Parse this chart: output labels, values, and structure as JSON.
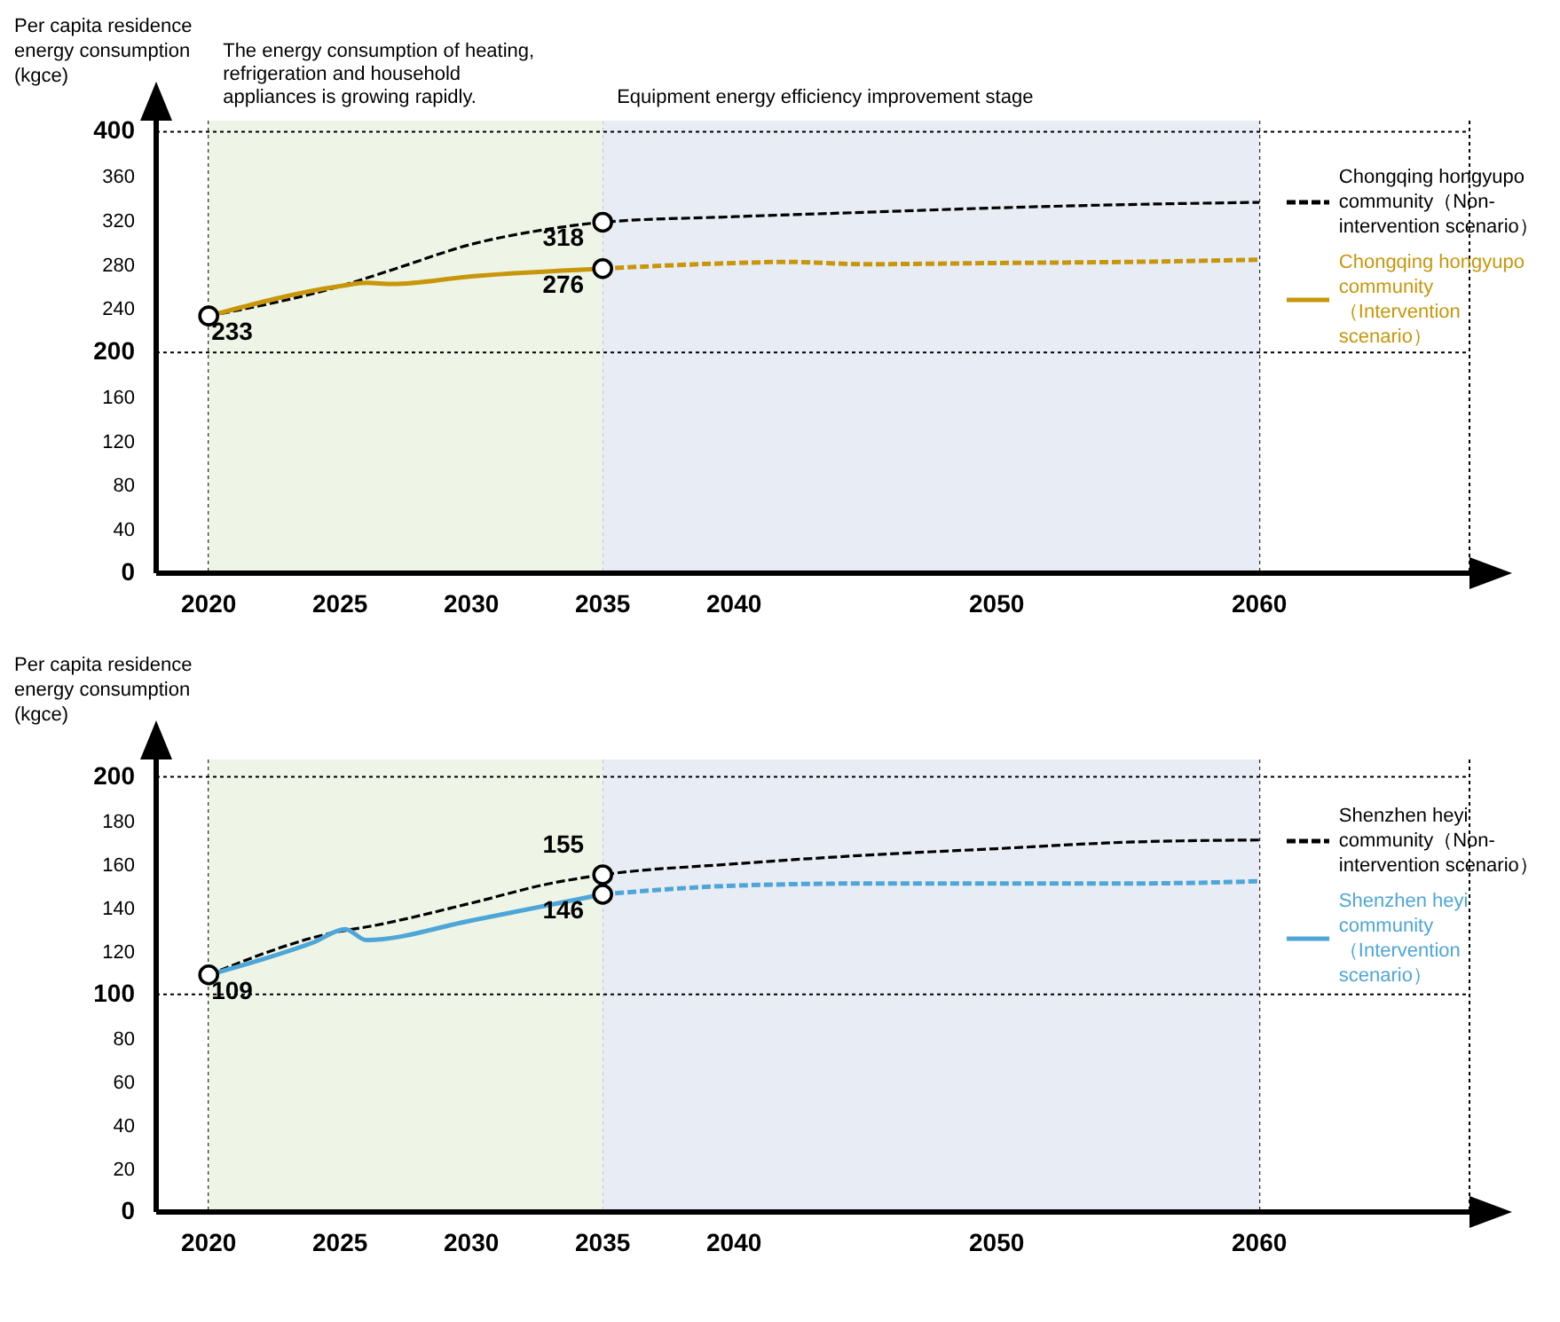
{
  "chart_data": [
    {
      "type": "line",
      "ylabel": "Per capita residence energy consumption (kgce)",
      "xlim": [
        2018,
        2068
      ],
      "xticks": [
        2020,
        2025,
        2030,
        2035,
        2040,
        2050,
        2060
      ],
      "ylim": [
        0,
        410
      ],
      "yticks": [
        0,
        40,
        80,
        120,
        160,
        200,
        240,
        280,
        320,
        360,
        400
      ],
      "grid": "x",
      "legend": "right",
      "marker": "none",
      "bands": [
        {
          "axis": "x",
          "from": 2020,
          "to": 2035,
          "label": "The energy consumption of heating, refrigeration and household appliances is growing rapidly.",
          "color": "#eef5e6"
        },
        {
          "axis": "x",
          "from": 2035,
          "to": 2060,
          "label": "Equipment energy efficiency improvement stage",
          "color": "#e8ecf5"
        }
      ],
      "ref_lines": [
        {
          "axis": "y",
          "value": 200,
          "line_style": "dotted",
          "color": "#000000"
        },
        {
          "axis": "y",
          "value": 400,
          "line_style": "dotted",
          "color": "#000000"
        }
      ],
      "series": [
        {
          "name": "Chongqing hongyupo community（Non-intervention scenario）",
          "type": "line",
          "line_style": "dashed",
          "color": "#000000",
          "x": [
            2020,
            2025,
            2027,
            2030,
            2033,
            2035,
            2040,
            2045,
            2050,
            2055,
            2060
          ],
          "values": [
            233,
            260,
            275,
            298,
            312,
            318,
            323,
            327,
            331,
            334,
            336
          ]
        },
        {
          "name": "Chongqing hongyupo community（Intervention scenario）",
          "type": "line",
          "line_style": "solid",
          "color": "#c8960a",
          "x": [
            2020,
            2025,
            2026,
            2027,
            2030,
            2035
          ],
          "values": [
            233,
            260,
            263,
            262,
            269,
            276
          ]
        },
        {
          "type": "line",
          "line_style": "dashed",
          "color": "#c8960a",
          "x": [
            2035,
            2040,
            2042,
            2045,
            2050,
            2055,
            2060
          ],
          "values": [
            276,
            281,
            282,
            280,
            281,
            282,
            284
          ]
        },
        {
          "type": "scatter",
          "marker": "circle",
          "color": "#000000",
          "x": [
            2020,
            2035,
            2035
          ],
          "values": [
            233,
            318,
            276
          ],
          "value_labels": [
            "233",
            "318",
            "276"
          ]
        }
      ]
    },
    {
      "type": "line",
      "ylabel": "Per capita residence energy consumption (kgce)",
      "xlim": [
        2018,
        2068
      ],
      "xticks": [
        2020,
        2025,
        2030,
        2035,
        2040,
        2050,
        2060
      ],
      "ylim": [
        0,
        208
      ],
      "yticks": [
        0,
        20,
        40,
        60,
        80,
        100,
        120,
        140,
        160,
        180,
        200
      ],
      "grid": "x",
      "legend": "right",
      "marker": "none",
      "bands": [
        {
          "axis": "x",
          "from": 2020,
          "to": 2035,
          "color": "#eef5e6"
        },
        {
          "axis": "x",
          "from": 2035,
          "to": 2060,
          "color": "#e8ecf5"
        }
      ],
      "ref_lines": [
        {
          "axis": "y",
          "value": 100,
          "line_style": "dotted",
          "color": "#000000"
        },
        {
          "axis": "y",
          "value": 200,
          "line_style": "dotted",
          "color": "#000000"
        }
      ],
      "series": [
        {
          "name": "Shenzhen heyi community（Non-intervention scenario）",
          "type": "line",
          "line_style": "dashed",
          "color": "#000000",
          "x": [
            2020,
            2025,
            2026,
            2030,
            2033,
            2035,
            2040,
            2045,
            2050,
            2055,
            2060
          ],
          "values": [
            109,
            129,
            131,
            142,
            151,
            155,
            160,
            164,
            167,
            170,
            171
          ]
        },
        {
          "name": "Shenzhen heyi community（Intervention scenario）",
          "type": "line",
          "line_style": "solid",
          "color": "#4ea6d8",
          "x": [
            2020,
            2022,
            2024,
            2025.2,
            2026,
            2030,
            2035
          ],
          "values": [
            109,
            116,
            124,
            130,
            125,
            134,
            146
          ]
        },
        {
          "type": "line",
          "line_style": "dashed",
          "color": "#4ea6d8",
          "x": [
            2035,
            2040,
            2045,
            2050,
            2055,
            2060
          ],
          "values": [
            146,
            150,
            151,
            151,
            151,
            152
          ]
        },
        {
          "type": "scatter",
          "marker": "circle",
          "color": "#000000",
          "x": [
            2020,
            2035,
            2035
          ],
          "values": [
            109,
            155,
            146
          ],
          "value_labels": [
            "109",
            "155",
            "146"
          ]
        }
      ]
    }
  ]
}
